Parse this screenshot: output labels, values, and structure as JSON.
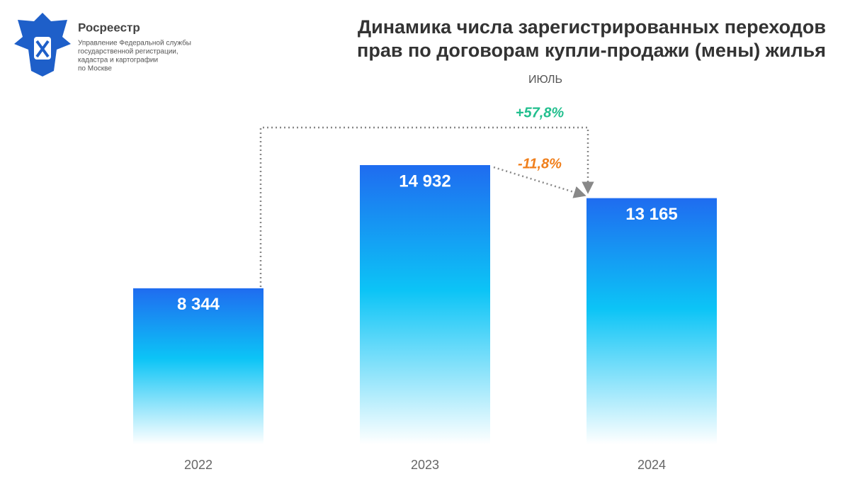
{
  "logo": {
    "name": "Росреестр",
    "lines": [
      "Управление Федеральной службы",
      "государственной регистрации,",
      "кадастра и картографии",
      "по Москве"
    ]
  },
  "chart_data": {
    "type": "bar",
    "title": [
      "Динамика числа зарегистрированных переходов",
      "прав по договорам купли-продажи (мены) жилья"
    ],
    "subtitle": "ИЮЛЬ",
    "categories": [
      "2022",
      "2023",
      "2024"
    ],
    "values": [
      8344,
      14932,
      13165
    ],
    "value_labels": [
      "8 344",
      "14 932",
      "13 165"
    ],
    "gradient": [
      "#1f6cf0",
      "#0cc4f6",
      "#ffffff"
    ],
    "annotations": [
      {
        "text": "+57,8%",
        "color": "#22bf8e"
      },
      {
        "text": "-11,8%",
        "color": "#f07f1c"
      }
    ]
  }
}
